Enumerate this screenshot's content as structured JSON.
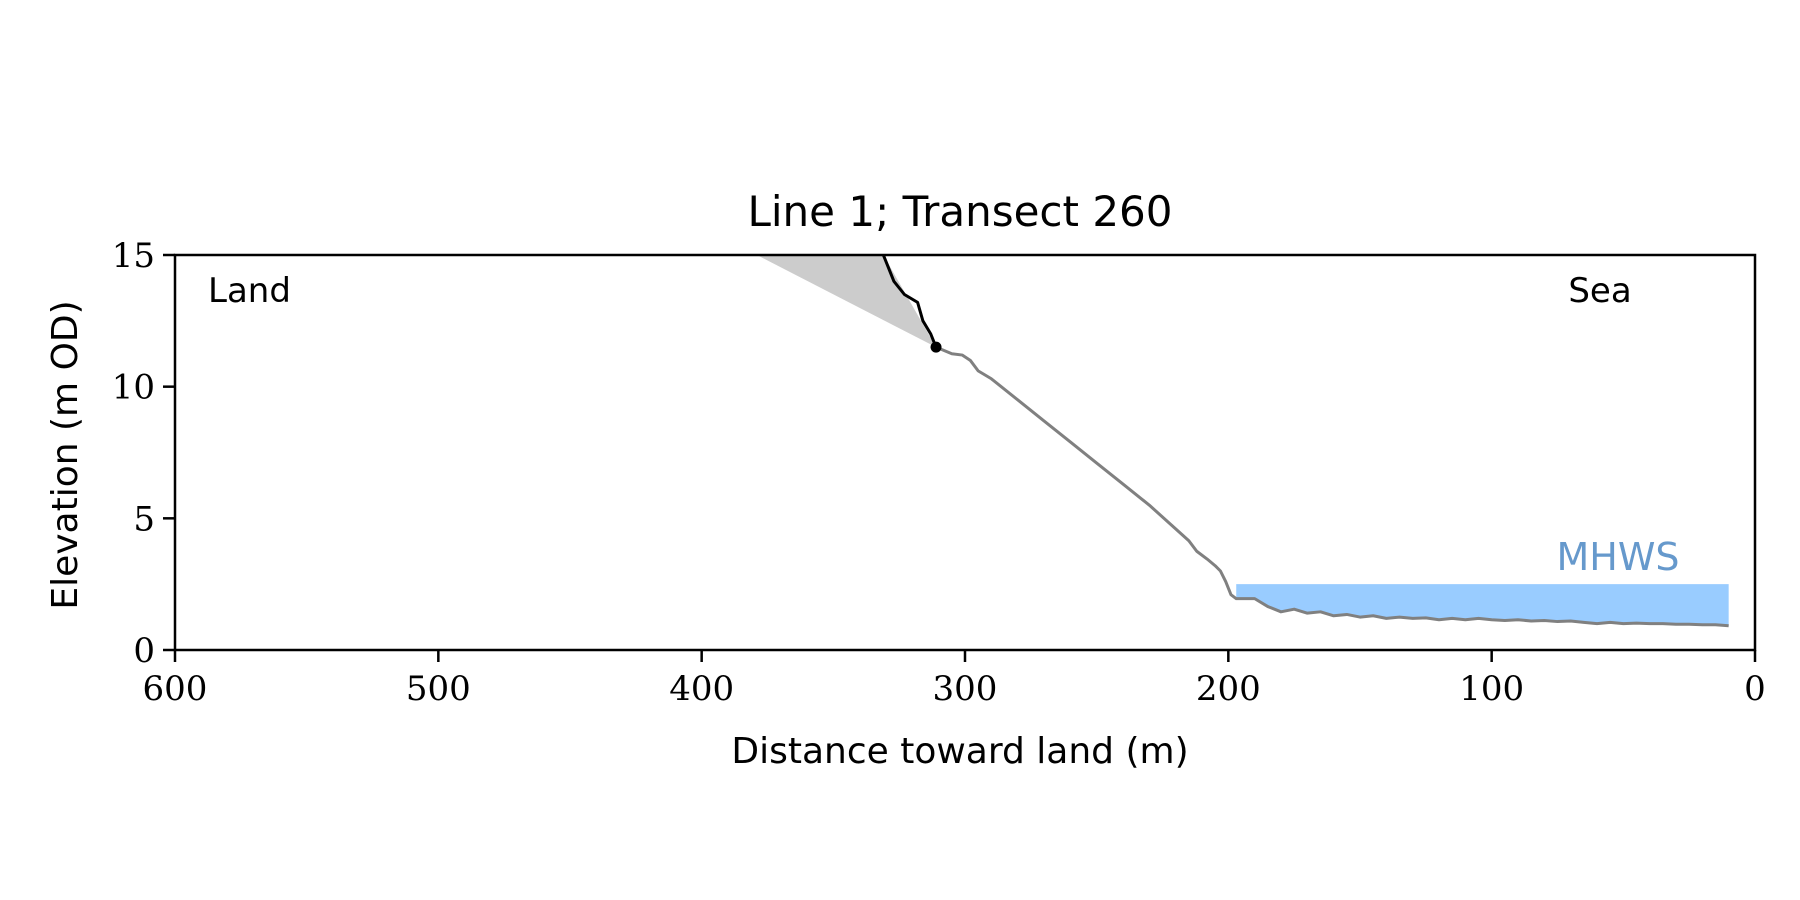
{
  "chart_data": {
    "type": "line",
    "title": "Line 1; Transect 260",
    "xlabel": "Distance toward land (m)",
    "ylabel": "Elevation (m OD)",
    "xlim": [
      600,
      0
    ],
    "ylim": [
      0,
      15
    ],
    "x_reversed": true,
    "xticks": [
      600,
      500,
      400,
      300,
      200,
      100,
      0
    ],
    "yticks": [
      0,
      5,
      10,
      15
    ],
    "grid": false,
    "annotations": {
      "land": "Land",
      "sea": "Sea",
      "mhws": "MHWS"
    },
    "colors": {
      "profile": "#808080",
      "cliff": "#000000",
      "wedge": "#cccccc",
      "mhws_fill": "#99ccff",
      "mhws_text": "#6699cc"
    },
    "series": [
      {
        "role": "profile",
        "x": [
          311,
          305,
          301,
          298,
          295,
          290,
          280,
          270,
          260,
          250,
          240,
          230,
          220,
          215,
          212,
          208,
          205,
          203,
          201,
          199,
          197,
          195,
          190,
          185,
          180,
          175,
          170,
          165,
          160,
          155,
          150,
          145,
          140,
          135,
          130,
          125,
          120,
          115,
          110,
          105,
          100,
          95,
          90,
          85,
          80,
          75,
          70,
          65,
          60,
          55,
          50,
          45,
          40,
          35,
          30,
          25,
          20,
          15,
          10
        ],
        "y": [
          11.5,
          11.25,
          11.2,
          11.0,
          10.6,
          10.3,
          9.5,
          8.7,
          7.9,
          7.1,
          6.3,
          5.5,
          4.6,
          4.15,
          3.75,
          3.45,
          3.2,
          3.0,
          2.6,
          2.1,
          1.95,
          1.95,
          1.95,
          1.65,
          1.45,
          1.55,
          1.4,
          1.45,
          1.3,
          1.35,
          1.25,
          1.3,
          1.2,
          1.25,
          1.2,
          1.22,
          1.15,
          1.2,
          1.15,
          1.2,
          1.15,
          1.12,
          1.15,
          1.1,
          1.12,
          1.08,
          1.1,
          1.05,
          1.0,
          1.05,
          1.0,
          1.02,
          1.0,
          1.0,
          0.98,
          0.98,
          0.96,
          0.96,
          0.92
        ]
      },
      {
        "role": "cliff",
        "x": [
          331,
          327,
          323,
          318,
          316,
          313,
          311
        ],
        "y": [
          15.0,
          14.0,
          13.5,
          13.2,
          12.5,
          12.0,
          11.5
        ]
      }
    ],
    "cliff_top_point": {
      "x": 311,
      "y": 11.5
    },
    "wedge": {
      "x": [
        379,
        331,
        311
      ],
      "y": [
        15.0,
        15.0,
        11.5
      ]
    },
    "mhws_band": {
      "x_from": 197,
      "x_to": 10,
      "y_low_profile": true,
      "y_top": 2.5
    }
  }
}
